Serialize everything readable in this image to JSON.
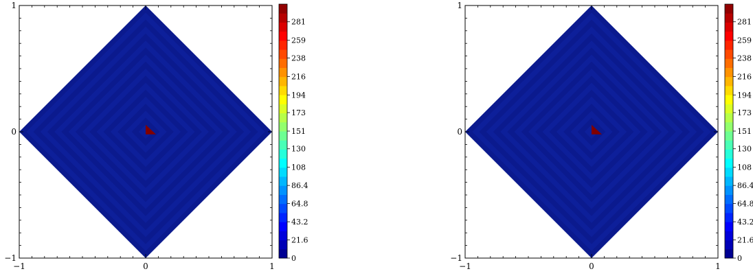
{
  "chart_data": [
    {
      "type": "heatmap",
      "panel": "left",
      "domain_shape": "diamond |x|+|y|<=1",
      "xlim": [
        -1,
        1
      ],
      "ylim": [
        -1,
        1
      ],
      "xticks": [
        "−1",
        "0",
        "1"
      ],
      "yticks": [
        "−1",
        "0",
        "1"
      ],
      "colorbar": {
        "min": 0,
        "max": 302,
        "levels": 28,
        "tick_values": [
          0,
          21.6,
          43.2,
          64.8,
          86.4,
          108,
          130,
          151,
          173,
          194,
          216,
          238,
          259,
          281
        ],
        "tick_labels": [
          "0",
          "21.6",
          "43.2",
          "64.8",
          "86.4",
          "108",
          "130",
          "151",
          "173",
          "194",
          "216",
          "238",
          "259",
          "281"
        ]
      },
      "background_value": 0,
      "peak": {
        "x": 0.0,
        "y": 0.05,
        "value": 302
      },
      "grid": false
    },
    {
      "type": "heatmap",
      "panel": "right",
      "domain_shape": "diamond |x|+|y|<=1",
      "xlim": [
        -1,
        1
      ],
      "ylim": [
        -1,
        1
      ],
      "xticks": [
        "−1",
        "0",
        "1"
      ],
      "yticks": [
        "−1",
        "0",
        "1"
      ],
      "colorbar": {
        "min": 0,
        "max": 302,
        "levels": 28,
        "tick_values": [
          0,
          21.6,
          43.2,
          64.8,
          86.4,
          108,
          130,
          151,
          173,
          194,
          216,
          238,
          259,
          281
        ],
        "tick_labels": [
          "0",
          "21.6",
          "43.2",
          "64.8",
          "86.4",
          "108",
          "130",
          "151",
          "173",
          "194",
          "216",
          "238",
          "259",
          "281"
        ]
      },
      "background_value": 0,
      "peak": {
        "x": 0.0,
        "y": 0.05,
        "value": 302
      },
      "grid": false
    }
  ],
  "colors": {
    "field_dark": "#0b1a8e",
    "field_ring": "#0d1f9a",
    "peak": "#7f0000",
    "axis": "#000000"
  }
}
